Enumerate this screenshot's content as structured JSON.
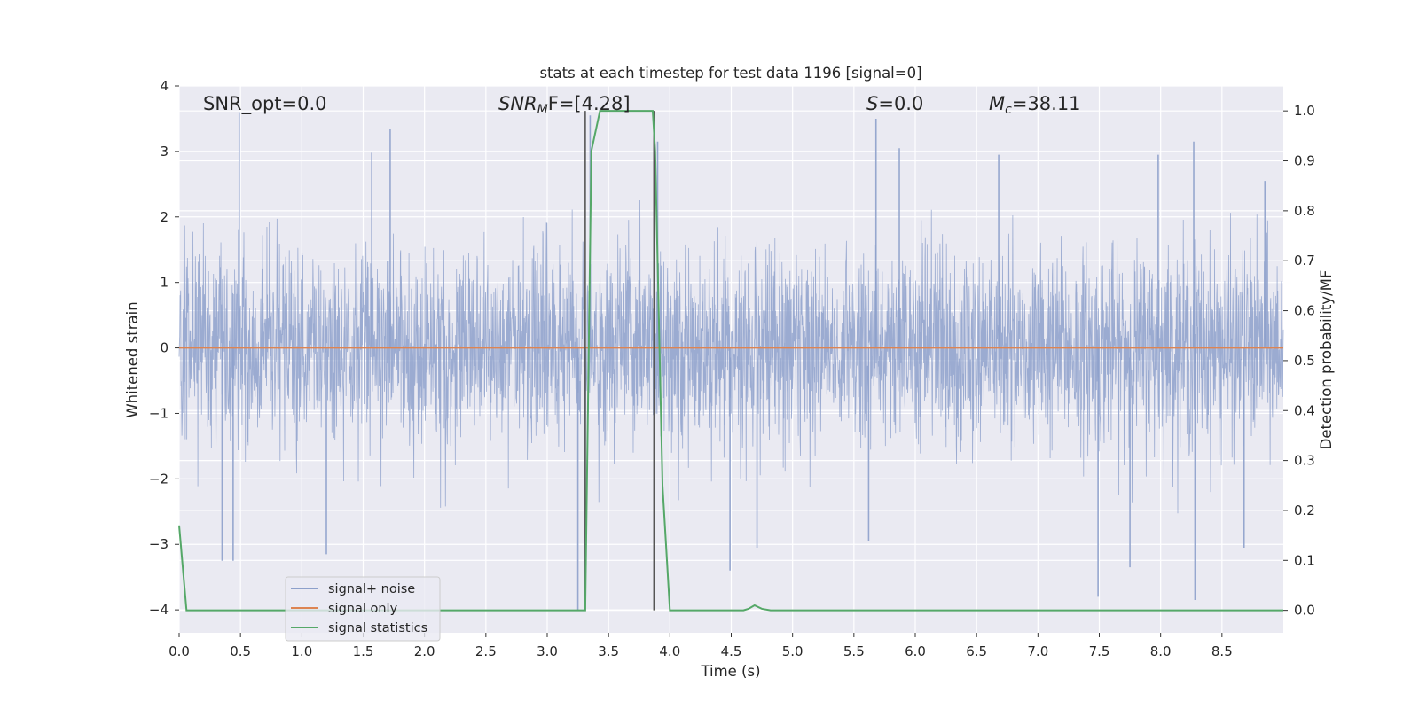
{
  "chart_data": {
    "type": "line",
    "title": "stats at each timestep for test data 1196 [signal=0]",
    "xlabel": "Time (s)",
    "ylabel_left": "Whitened strain",
    "ylabel_right": "Detection probability/MF",
    "xlim": [
      0.0,
      9.0
    ],
    "ylim_left": [
      -4.35,
      4.0
    ],
    "ylim_right": [
      -0.045,
      1.05
    ],
    "x_ticks": [
      "0.0",
      "0.5",
      "1.0",
      "1.5",
      "2.0",
      "2.5",
      "3.0",
      "3.5",
      "4.0",
      "4.5",
      "5.0",
      "5.5",
      "6.0",
      "6.5",
      "7.0",
      "7.5",
      "8.0",
      "8.5"
    ],
    "y_ticks_left": [
      "4",
      "3",
      "2",
      "1",
      "0",
      "−1",
      "−2",
      "−3",
      "−4"
    ],
    "y_ticks_right": [
      "1.0",
      "0.9",
      "0.8",
      "0.7",
      "0.6",
      "0.5",
      "0.4",
      "0.3",
      "0.2",
      "0.1",
      "0.0"
    ],
    "grid": true,
    "legend_position": "lower-left",
    "annotations": {
      "snr_opt": "SNR_opt=0.0",
      "snr_mf_base": "SNR",
      "snr_mf_sub": "M",
      "snr_mf_rest": "F=[4.28]",
      "s_italic": "S",
      "s_rest": "=0.0",
      "mc_base": "M",
      "mc_sub": "c",
      "mc_rest": "=38.11"
    },
    "vlines_x": [
      3.31,
      3.87
    ],
    "series": [
      {
        "name": "signal+ noise",
        "color": "#8da0cb",
        "axis": "left",
        "description_values": {
          "typical_amplitude_range": [
            -1.8,
            2.0
          ],
          "max_spike": 3.6,
          "min_spike": -4.0
        },
        "spikes": [
          [
            0.49,
            3.6
          ],
          [
            1.72,
            3.35
          ],
          [
            1.57,
            2.98
          ],
          [
            3.35,
            3.55
          ],
          [
            3.9,
            3.15
          ],
          [
            5.68,
            3.5
          ],
          [
            5.87,
            3.05
          ],
          [
            6.68,
            2.95
          ],
          [
            7.98,
            2.95
          ],
          [
            8.27,
            3.15
          ],
          [
            8.85,
            2.55
          ],
          [
            0.35,
            -3.25
          ],
          [
            0.44,
            -3.25
          ],
          [
            1.2,
            -3.15
          ],
          [
            3.25,
            -4.0
          ],
          [
            3.31,
            -3.85
          ],
          [
            4.49,
            -3.4
          ],
          [
            4.71,
            -3.05
          ],
          [
            5.62,
            -2.95
          ],
          [
            7.49,
            -3.8
          ],
          [
            7.75,
            -3.35
          ],
          [
            8.28,
            -3.85
          ],
          [
            8.68,
            -3.05
          ]
        ]
      },
      {
        "name": "signal only",
        "color": "#dd8452",
        "axis": "left",
        "x": [
          0.0,
          9.0
        ],
        "y": [
          0.0,
          0.0
        ]
      },
      {
        "name": "signal statistics",
        "color": "#55a868",
        "axis": "right",
        "x": [
          0.0,
          0.06,
          0.12,
          3.3,
          3.31,
          3.36,
          3.43,
          3.5,
          3.86,
          3.88,
          3.94,
          4.0,
          4.2,
          4.6,
          4.64,
          4.69,
          4.75,
          4.82,
          5.0,
          9.0
        ],
        "y": [
          0.17,
          0.0,
          0.0,
          0.0,
          0.0,
          0.92,
          1.0,
          1.0,
          1.0,
          0.92,
          0.25,
          0.0,
          0.0,
          0.0,
          0.003,
          0.01,
          0.003,
          0.0,
          0.0,
          0.0
        ]
      }
    ]
  }
}
